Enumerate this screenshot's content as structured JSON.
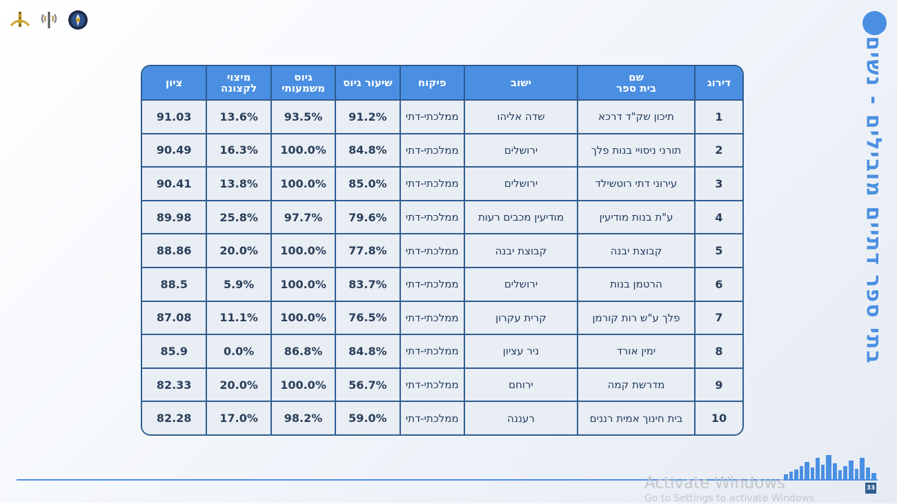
{
  "title": "בתי ספר דתיים מובילים - נשים",
  "table": {
    "headers": [
      "דירוג",
      "שם\nבית ספר",
      "ישוב",
      "פיקוח",
      "שיעור גיוס",
      "גיוס\nמשמעותי",
      "מיצוי\nלקצונה",
      "ציון"
    ],
    "rows": [
      [
        "1",
        "תיכון שק\"ד דרכא",
        "שדה אליהו",
        "ממלכתי-דתי",
        "91.2%",
        "93.5%",
        "13.6%",
        "91.03"
      ],
      [
        "2",
        "תורני ניסויי בנות פלך",
        "ירושלים",
        "ממלכתי-דתי",
        "84.8%",
        "100.0%",
        "16.3%",
        "90.49"
      ],
      [
        "3",
        "עירוני דתי רוטשילד",
        "ירושלים",
        "ממלכתי-דתי",
        "85.0%",
        "100.0%",
        "13.8%",
        "90.41"
      ],
      [
        "4",
        "ע\"ת בנות מודיעין",
        "מודיעין מכבים רעות",
        "ממלכתי-דתי",
        "79.6%",
        "97.7%",
        "25.8%",
        "89.98"
      ],
      [
        "5",
        "קבוצת יבנה",
        "קבוצת יבנה",
        "ממלכתי-דתי",
        "77.8%",
        "100.0%",
        "20.0%",
        "88.86"
      ],
      [
        "6",
        "הרטמן בנות",
        "ירושלים",
        "ממלכתי-דתי",
        "83.7%",
        "100.0%",
        "5.9%",
        "88.5"
      ],
      [
        "7",
        "פלך ע\"ש רות קורמן",
        "קרית עקרון",
        "ממלכתי-דתי",
        "76.5%",
        "100.0%",
        "11.1%",
        "87.08"
      ],
      [
        "8",
        "ימין אורד",
        "ניר עציון",
        "ממלכתי-דתי",
        "84.8%",
        "86.8%",
        "0.0%",
        "85.9"
      ],
      [
        "9",
        "מדרשת קמה",
        "ירוחם",
        "ממלכתי-דתי",
        "56.7%",
        "100.0%",
        "20.0%",
        "82.33"
      ],
      [
        "10",
        "בית חינוך אמית רננים",
        "רעננה",
        "ממלכתי-דתי",
        "59.0%",
        "98.2%",
        "17.0%",
        "82.28"
      ]
    ]
  },
  "page_number": "33",
  "watermark": {
    "line1": "Activate Windows",
    "line2": "Go to Settings to activate Windows."
  },
  "logos": [
    "idf-emblem-icon",
    "intelligence-corps-icon",
    "unit-badge-icon"
  ],
  "colors": {
    "accent": "#4a8fe2",
    "border": "#2d5c8f",
    "cell": "#e9edf4"
  }
}
